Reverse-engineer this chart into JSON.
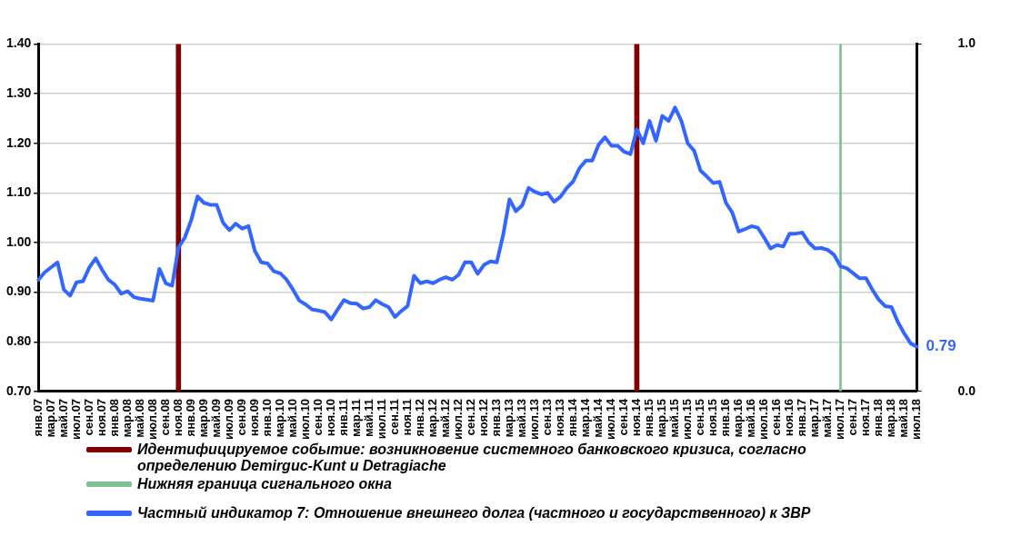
{
  "chart_data": {
    "type": "line",
    "categories": [
      "янв.07",
      null,
      "мар.07",
      null,
      "май.07",
      null,
      "июл.07",
      null,
      "сен.07",
      null,
      "ноя.07",
      null,
      "янв.08",
      null,
      "мар.08",
      null,
      "май.08",
      null,
      "июл.08",
      null,
      "сен.08",
      null,
      "ноя.08",
      null,
      "янв.09",
      null,
      "мар.09",
      null,
      "май.09",
      null,
      "июл.09",
      null,
      "сен.09",
      null,
      "ноя.09",
      null,
      "янв.10",
      null,
      "мар.10",
      null,
      "май.10",
      null,
      "июл.10",
      null,
      "сен.10",
      null,
      "ноя.10",
      null,
      "янв.11",
      null,
      "мар.11",
      null,
      "май.11",
      null,
      "июл.11",
      null,
      "сен.11",
      null,
      "ноя.11",
      null,
      "янв.12",
      null,
      "мар.12",
      null,
      "май.12",
      null,
      "июл.12",
      null,
      "сен.12",
      null,
      "ноя.12",
      null,
      "янв.13",
      null,
      "мар.13",
      null,
      "май.13",
      null,
      "июл.13",
      null,
      "сен.13",
      null,
      "ноя.13",
      null,
      "янв.14",
      null,
      "мар.14",
      null,
      "май.14",
      null,
      "июл.14",
      null,
      "сен.14",
      null,
      "ноя.14",
      null,
      "янв.15",
      null,
      "мар.15",
      null,
      "май.15",
      null,
      "июл.15",
      null,
      "сен.15",
      null,
      "ноя.15",
      null,
      "янв.16",
      null,
      "мар.16",
      null,
      "май.16",
      null,
      "июл.16",
      null,
      "сен.16",
      null,
      "ноя.16",
      null,
      "янв.17",
      null,
      "мар.17",
      null,
      "май.17",
      null,
      "июл.17",
      null,
      "сен.17",
      null,
      "ноя.17",
      null,
      "янв.18",
      null,
      "мар.18",
      null,
      "май.18",
      null,
      "июл.18"
    ],
    "series": [
      {
        "name": "Идентифицируемое событие: возникновение системного банковского кризиса, согласно определению Demirguc-Kunt и Detragiache",
        "type": "bar",
        "axis": "y2",
        "color": "#800000",
        "values": [
          null,
          null,
          null,
          null,
          null,
          null,
          null,
          null,
          null,
          null,
          null,
          null,
          null,
          null,
          null,
          null,
          null,
          null,
          null,
          null,
          null,
          null,
          1,
          null,
          null,
          null,
          null,
          null,
          null,
          null,
          null,
          null,
          null,
          null,
          null,
          null,
          null,
          null,
          null,
          null,
          null,
          null,
          null,
          null,
          null,
          null,
          null,
          null,
          null,
          null,
          null,
          null,
          null,
          null,
          null,
          null,
          null,
          null,
          null,
          null,
          null,
          null,
          null,
          null,
          null,
          null,
          null,
          null,
          null,
          null,
          null,
          null,
          null,
          null,
          null,
          null,
          null,
          null,
          null,
          null,
          null,
          null,
          null,
          null,
          null,
          null,
          null,
          null,
          null,
          null,
          null,
          null,
          null,
          null,
          1,
          null,
          null,
          null,
          null,
          null,
          null,
          null,
          null,
          null,
          null,
          null,
          null,
          null,
          null,
          null,
          null,
          null,
          null,
          null,
          null,
          null,
          null,
          null,
          null,
          null,
          null,
          null,
          null,
          null,
          null,
          null,
          null,
          null,
          null,
          null,
          null,
          null,
          null,
          null,
          null,
          null,
          null,
          null,
          null
        ]
      },
      {
        "name": "Нижняя граница сигнального окна",
        "type": "bar",
        "axis": "y2",
        "color": "#7fbf9a",
        "values": [
          null,
          null,
          null,
          null,
          null,
          null,
          null,
          null,
          null,
          null,
          null,
          null,
          null,
          null,
          null,
          null,
          null,
          null,
          null,
          null,
          null,
          null,
          null,
          null,
          null,
          null,
          null,
          null,
          null,
          null,
          null,
          null,
          null,
          null,
          null,
          null,
          null,
          null,
          null,
          null,
          null,
          null,
          null,
          null,
          null,
          null,
          null,
          null,
          null,
          null,
          null,
          null,
          null,
          null,
          null,
          null,
          null,
          null,
          null,
          null,
          null,
          null,
          null,
          null,
          null,
          null,
          null,
          null,
          null,
          null,
          null,
          null,
          null,
          null,
          null,
          null,
          null,
          null,
          null,
          null,
          null,
          null,
          null,
          null,
          null,
          null,
          null,
          null,
          null,
          null,
          null,
          null,
          null,
          null,
          null,
          null,
          null,
          null,
          null,
          null,
          null,
          null,
          null,
          null,
          null,
          null,
          null,
          null,
          null,
          null,
          null,
          null,
          null,
          null,
          null,
          null,
          null,
          null,
          null,
          null,
          null,
          null,
          null,
          null,
          null,
          null,
          1,
          null,
          null,
          null,
          null,
          null,
          null,
          null,
          null,
          null,
          null,
          null,
          null
        ]
      },
      {
        "name": "Частный индикатор 7: Отношение внешнего долга (частного и государственного) к ЗВР",
        "color": "#3366ff",
        "values": [
          0.925,
          0.94,
          0.95,
          0.96,
          0.905,
          0.893,
          0.92,
          0.922,
          0.95,
          0.968,
          0.945,
          0.925,
          0.915,
          0.897,
          0.902,
          0.89,
          0.887,
          0.885,
          0.883,
          0.947,
          0.918,
          0.913,
          0.99,
          1.01,
          1.045,
          1.093,
          1.08,
          1.076,
          1.076,
          1.04,
          1.025,
          1.038,
          1.028,
          1.033,
          0.983,
          0.96,
          0.958,
          0.942,
          0.938,
          0.925,
          0.905,
          0.883,
          0.875,
          0.865,
          0.863,
          0.86,
          0.845,
          0.865,
          0.884,
          0.878,
          0.877,
          0.867,
          0.87,
          0.884,
          0.876,
          0.87,
          0.85,
          0.862,
          0.872,
          0.933,
          0.918,
          0.922,
          0.918,
          0.925,
          0.93,
          0.925,
          0.935,
          0.96,
          0.96,
          0.937,
          0.955,
          0.962,
          0.96,
          1.015,
          1.087,
          1.063,
          1.075,
          1.11,
          1.102,
          1.097,
          1.1,
          1.082,
          1.092,
          1.11,
          1.123,
          1.15,
          1.165,
          1.165,
          1.197,
          1.212,
          1.195,
          1.195,
          1.183,
          1.178,
          1.228,
          1.2,
          1.245,
          1.205,
          1.255,
          1.245,
          1.272,
          1.245,
          1.2,
          1.185,
          1.145,
          1.133,
          1.12,
          1.122,
          1.08,
          1.06,
          1.022,
          1.027,
          1.033,
          1.03,
          1.01,
          0.988,
          0.995,
          0.992,
          1.018,
          1.018,
          1.02,
          1.0,
          0.988,
          0.989,
          0.985,
          0.975,
          0.952,
          0.948,
          0.938,
          0.928,
          0.928,
          0.905,
          0.885,
          0.872,
          0.87,
          0.84,
          0.817,
          0.797,
          0.79
        ]
      }
    ],
    "ylim": [
      0.7,
      1.4
    ],
    "yticks": [
      {
        "value": 0.7,
        "label": "0.70"
      },
      {
        "value": 0.8,
        "label": "0.80"
      },
      {
        "value": 0.9,
        "label": "0.90"
      },
      {
        "value": 1.0,
        "label": "1.00"
      },
      {
        "value": 1.1,
        "label": "1.10"
      },
      {
        "value": 1.2,
        "label": "1.20"
      },
      {
        "value": 1.3,
        "label": "1.30"
      },
      {
        "value": 1.4,
        "label": "1.40"
      }
    ],
    "y2lim": [
      0,
      1
    ],
    "y2ticks": [
      {
        "value": 0,
        "label": "0.0"
      },
      {
        "value": 1,
        "label": "1.0"
      }
    ],
    "grid": "y",
    "legend": "bottom",
    "marker": "none",
    "line_style": "solid",
    "annotations": [
      {
        "text": "0.79",
        "x": "июл.18",
        "y": 0.79
      }
    ]
  }
}
